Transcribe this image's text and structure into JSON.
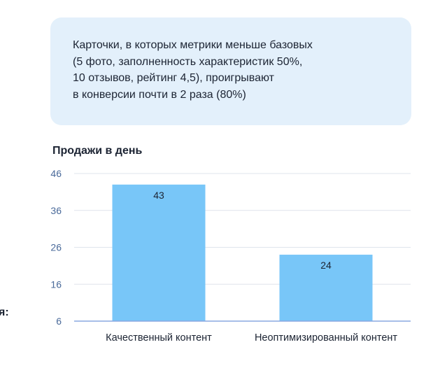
{
  "callout": {
    "lines": [
      "Карточки, в которых метрики меньше базовых",
      "(5 фото, заполненность характеристик 50%,",
      "10 отзывов, рейтинг 4,5), проигрывают",
      "в конверсии почти в 2 раза (80%)"
    ]
  },
  "side_fragment": "я:",
  "chart_data": {
    "type": "bar",
    "title": "Продажи в день",
    "categories": [
      "Качественный контент",
      "Неоптимизированный контент"
    ],
    "values": [
      43,
      24
    ],
    "data_labels": [
      "43",
      "24"
    ],
    "y_ticks": [
      "6",
      "16",
      "26",
      "36",
      "46"
    ],
    "ylim": [
      6,
      46
    ],
    "grid": true,
    "colors": {
      "bar": "#78c6f8",
      "baseline": "#8aa9e0",
      "grid": "#dfe4ec",
      "callout_bg": "#e3f0fb"
    }
  }
}
